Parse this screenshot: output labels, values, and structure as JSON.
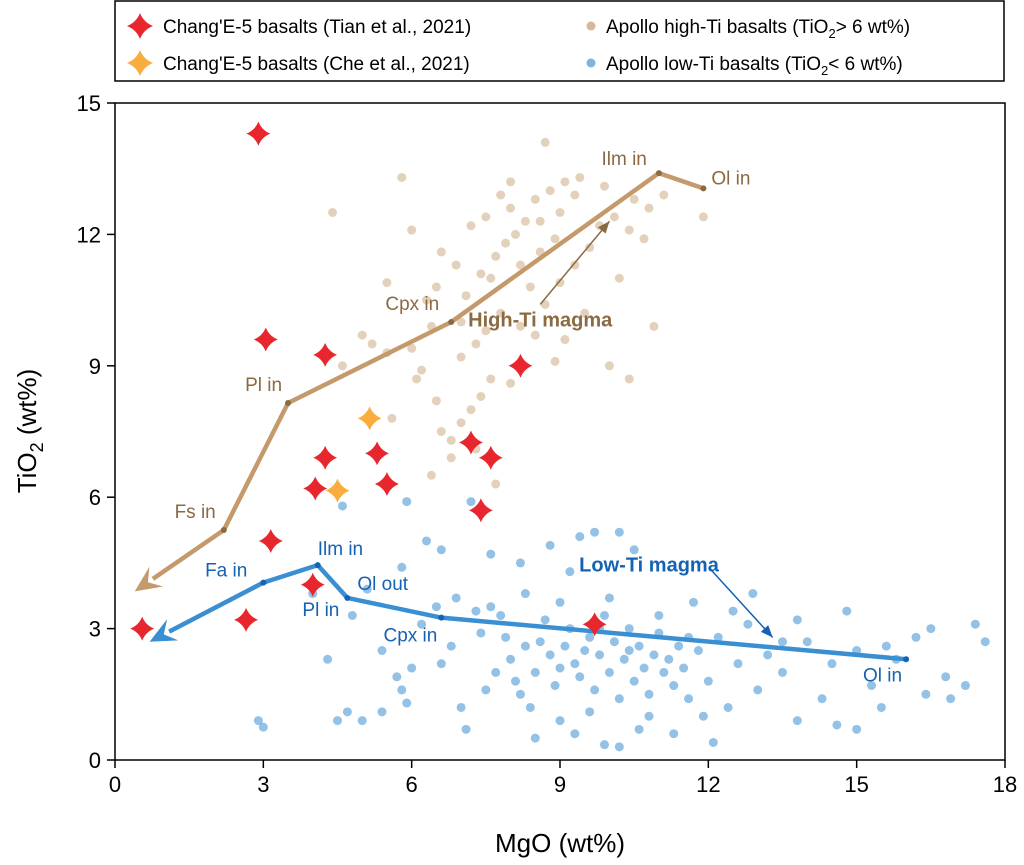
{
  "chart_data": {
    "type": "scatter",
    "xlabel": "MgO (wt%)",
    "ylabel_main": "TiO",
    "ylabel_sub": "2",
    "ylabel_tail": " (wt%)",
    "xlim": [
      0,
      18
    ],
    "ylim": [
      0,
      15
    ],
    "xticks": [
      "0",
      "3",
      "6",
      "9",
      "12",
      "15",
      "18"
    ],
    "yticks": [
      "0",
      "3",
      "6",
      "9",
      "12",
      "15"
    ],
    "grid": false,
    "legend_position": "top",
    "legend": [
      {
        "label": "Chang'E-5 basalts (Tian et al., 2021)",
        "marker": "star",
        "color": "#e8262d"
      },
      {
        "label": "Chang'E-5 basalts (Che et al., 2021)",
        "marker": "star",
        "color": "#f8ad3c"
      },
      {
        "label_pre": "Apollo high-Ti basalts (TiO",
        "label_sub": "2",
        "label_post": "> 6 wt%)",
        "marker": "dot",
        "color": "#d6b896"
      },
      {
        "label_pre": "Apollo low-Ti basalts (TiO",
        "label_sub": "2",
        "label_post": "< 6 wt%)",
        "marker": "dot",
        "color": "#7fb4e0"
      }
    ],
    "series": [
      {
        "name": "Chang'E-5 basalts (Tian et al., 2021)",
        "color": "#e8262d",
        "marker": "star",
        "points": [
          [
            2.9,
            14.3
          ],
          [
            3.05,
            9.6
          ],
          [
            4.25,
            9.25
          ],
          [
            8.2,
            9.0
          ],
          [
            4.25,
            6.9
          ],
          [
            5.3,
            7.0
          ],
          [
            7.2,
            7.25
          ],
          [
            7.6,
            6.9
          ],
          [
            4.05,
            6.2
          ],
          [
            5.5,
            6.3
          ],
          [
            7.4,
            5.7
          ],
          [
            3.15,
            5.0
          ],
          [
            4.0,
            4.0
          ],
          [
            2.65,
            3.2
          ],
          [
            0.55,
            3.0
          ],
          [
            9.7,
            3.1
          ]
        ]
      },
      {
        "name": "Chang'E-5 basalts (Che et al., 2021)",
        "color": "#f8ad3c",
        "marker": "star",
        "points": [
          [
            5.15,
            7.8
          ],
          [
            4.5,
            6.15
          ]
        ]
      },
      {
        "name": "Apollo high-Ti basalts",
        "color": "#d6b896",
        "marker": "dot",
        "points": [
          [
            5.0,
            9.7
          ],
          [
            4.4,
            12.5
          ],
          [
            5.8,
            13.3
          ],
          [
            6.5,
            10.8
          ],
          [
            6.3,
            10.5
          ],
          [
            5.5,
            9.3
          ],
          [
            5.2,
            9.5
          ],
          [
            6.0,
            9.4
          ],
          [
            6.2,
            8.9
          ],
          [
            6.5,
            8.2
          ],
          [
            6.6,
            7.5
          ],
          [
            6.8,
            7.3
          ],
          [
            7.0,
            7.7
          ],
          [
            6.4,
            6.5
          ],
          [
            7.2,
            8.0
          ],
          [
            7.4,
            8.3
          ],
          [
            7.6,
            8.7
          ],
          [
            7.0,
            9.2
          ],
          [
            7.3,
            9.5
          ],
          [
            7.5,
            9.8
          ],
          [
            7.8,
            10.2
          ],
          [
            7.1,
            10.6
          ],
          [
            7.4,
            11.1
          ],
          [
            7.7,
            11.5
          ],
          [
            7.9,
            11.8
          ],
          [
            8.1,
            12.0
          ],
          [
            8.3,
            12.3
          ],
          [
            8.0,
            12.6
          ],
          [
            8.5,
            12.8
          ],
          [
            8.8,
            13.0
          ],
          [
            9.1,
            13.2
          ],
          [
            9.3,
            12.9
          ],
          [
            8.6,
            11.6
          ],
          [
            8.9,
            11.9
          ],
          [
            8.2,
            11.3
          ],
          [
            8.4,
            10.8
          ],
          [
            8.7,
            10.4
          ],
          [
            9.0,
            10.9
          ],
          [
            9.3,
            11.3
          ],
          [
            9.6,
            11.7
          ],
          [
            9.8,
            12.2
          ],
          [
            10.1,
            12.4
          ],
          [
            10.4,
            12.1
          ],
          [
            10.7,
            11.9
          ],
          [
            10.5,
            12.8
          ],
          [
            10.8,
            12.6
          ],
          [
            9.9,
            13.1
          ],
          [
            9.4,
            13.3
          ],
          [
            8.7,
            14.1
          ],
          [
            10.2,
            11.0
          ],
          [
            10.9,
            9.9
          ],
          [
            10.0,
            9.0
          ],
          [
            10.4,
            8.7
          ],
          [
            9.1,
            9.6
          ],
          [
            8.9,
            9.1
          ],
          [
            8.2,
            9.9
          ],
          [
            7.6,
            11.0
          ],
          [
            6.9,
            11.3
          ],
          [
            6.6,
            11.6
          ],
          [
            7.2,
            12.2
          ],
          [
            7.5,
            12.4
          ],
          [
            7.8,
            12.9
          ],
          [
            8.0,
            13.2
          ],
          [
            6.0,
            12.1
          ],
          [
            5.5,
            10.9
          ],
          [
            11.9,
            12.4
          ],
          [
            11.1,
            12.9
          ],
          [
            6.1,
            8.7
          ],
          [
            6.8,
            6.9
          ],
          [
            7.7,
            6.3
          ],
          [
            4.6,
            9.0
          ],
          [
            5.6,
            7.8
          ],
          [
            7.3,
            7.1
          ],
          [
            8.5,
            9.7
          ],
          [
            9.5,
            10.2
          ],
          [
            8.0,
            8.6
          ],
          [
            6.4,
            9.9
          ],
          [
            7.0,
            10.0
          ],
          [
            8.6,
            12.3
          ],
          [
            9.0,
            12.5
          ]
        ]
      },
      {
        "name": "Apollo low-Ti basalts",
        "color": "#5aa0d8",
        "marker": "dot",
        "points": [
          [
            2.9,
            0.9
          ],
          [
            3.0,
            0.75
          ],
          [
            4.0,
            3.8
          ],
          [
            4.3,
            2.3
          ],
          [
            4.5,
            0.9
          ],
          [
            4.7,
            1.1
          ],
          [
            5.0,
            0.9
          ],
          [
            4.6,
            5.8
          ],
          [
            5.4,
            1.1
          ],
          [
            5.7,
            1.9
          ],
          [
            5.8,
            1.6
          ],
          [
            5.9,
            1.3
          ],
          [
            5.4,
            2.5
          ],
          [
            6.0,
            2.1
          ],
          [
            6.2,
            3.1
          ],
          [
            5.8,
            4.4
          ],
          [
            5.9,
            5.9
          ],
          [
            6.3,
            5.0
          ],
          [
            6.6,
            2.2
          ],
          [
            6.8,
            2.6
          ],
          [
            6.6,
            4.8
          ],
          [
            6.9,
            3.7
          ],
          [
            7.1,
            0.7
          ],
          [
            7.2,
            5.9
          ],
          [
            7.3,
            3.4
          ],
          [
            7.4,
            2.9
          ],
          [
            7.6,
            3.5
          ],
          [
            7.8,
            3.3
          ],
          [
            7.9,
            2.8
          ],
          [
            8.0,
            2.3
          ],
          [
            8.1,
            1.8
          ],
          [
            8.2,
            1.5
          ],
          [
            8.4,
            1.2
          ],
          [
            8.5,
            2.0
          ],
          [
            8.6,
            2.7
          ],
          [
            8.7,
            3.2
          ],
          [
            8.8,
            2.4
          ],
          [
            8.9,
            1.7
          ],
          [
            9.0,
            2.1
          ],
          [
            9.1,
            2.6
          ],
          [
            9.2,
            3.0
          ],
          [
            9.3,
            2.2
          ],
          [
            9.4,
            1.9
          ],
          [
            9.5,
            2.5
          ],
          [
            9.6,
            2.8
          ],
          [
            9.7,
            1.6
          ],
          [
            9.8,
            2.4
          ],
          [
            9.9,
            3.3
          ],
          [
            10.0,
            2.0
          ],
          [
            10.1,
            2.7
          ],
          [
            10.2,
            1.4
          ],
          [
            10.3,
            2.3
          ],
          [
            10.4,
            3.0
          ],
          [
            10.5,
            1.8
          ],
          [
            10.6,
            2.6
          ],
          [
            10.7,
            2.1
          ],
          [
            10.8,
            1.5
          ],
          [
            10.9,
            2.4
          ],
          [
            11.0,
            2.9
          ],
          [
            11.1,
            2.0
          ],
          [
            11.2,
            2.3
          ],
          [
            11.3,
            1.7
          ],
          [
            11.4,
            2.6
          ],
          [
            11.5,
            2.1
          ],
          [
            11.6,
            1.4
          ],
          [
            11.8,
            2.5
          ],
          [
            12.0,
            1.8
          ],
          [
            12.2,
            2.8
          ],
          [
            12.4,
            1.2
          ],
          [
            12.6,
            2.2
          ],
          [
            12.8,
            3.1
          ],
          [
            13.0,
            1.6
          ],
          [
            13.2,
            2.4
          ],
          [
            13.5,
            2.0
          ],
          [
            13.8,
            0.9
          ],
          [
            14.0,
            2.7
          ],
          [
            14.3,
            1.4
          ],
          [
            14.6,
            0.8
          ],
          [
            15.0,
            2.5
          ],
          [
            15.0,
            0.7
          ],
          [
            15.3,
            1.7
          ],
          [
            15.6,
            2.6
          ],
          [
            16.2,
            2.8
          ],
          [
            16.4,
            1.5
          ],
          [
            16.8,
            1.9
          ],
          [
            16.9,
            1.4
          ],
          [
            17.2,
            1.7
          ],
          [
            17.4,
            3.1
          ],
          [
            17.6,
            2.7
          ],
          [
            16.5,
            3.0
          ],
          [
            15.8,
            2.3
          ],
          [
            14.8,
            3.4
          ],
          [
            13.8,
            3.2
          ],
          [
            12.9,
            3.8
          ],
          [
            11.7,
            3.6
          ],
          [
            10.5,
            4.8
          ],
          [
            10.2,
            5.2
          ],
          [
            9.7,
            5.2
          ],
          [
            9.2,
            4.3
          ],
          [
            8.2,
            4.5
          ],
          [
            7.6,
            4.7
          ],
          [
            8.8,
            4.9
          ],
          [
            9.4,
            5.1
          ],
          [
            8.5,
            0.5
          ],
          [
            9.3,
            0.6
          ],
          [
            9.9,
            0.35
          ],
          [
            10.2,
            0.3
          ],
          [
            10.6,
            0.7
          ],
          [
            11.3,
            0.6
          ],
          [
            12.1,
            0.4
          ],
          [
            7.0,
            1.2
          ],
          [
            7.5,
            1.6
          ],
          [
            7.7,
            2.0
          ],
          [
            6.5,
            3.5
          ],
          [
            4.8,
            3.3
          ],
          [
            5.1,
            3.9
          ],
          [
            8.3,
            3.8
          ],
          [
            9.0,
            3.6
          ],
          [
            10.0,
            3.7
          ],
          [
            11.0,
            3.3
          ],
          [
            12.5,
            3.4
          ],
          [
            13.5,
            2.7
          ],
          [
            14.5,
            2.2
          ],
          [
            15.5,
            1.2
          ],
          [
            9.6,
            1.1
          ],
          [
            9.0,
            0.9
          ],
          [
            10.8,
            1.0
          ],
          [
            11.9,
            1.0
          ],
          [
            8.3,
            2.6
          ],
          [
            9.8,
            3.0
          ],
          [
            10.4,
            2.5
          ],
          [
            11.6,
            2.8
          ]
        ]
      }
    ],
    "paths": [
      {
        "name": "High-Ti magma",
        "color": "#c49a6c",
        "text_color": "#8b6a42",
        "points": [
          [
            11.9,
            13.05
          ],
          [
            11.0,
            13.4
          ],
          [
            6.8,
            10.0
          ],
          [
            3.5,
            8.15
          ],
          [
            2.2,
            5.25
          ],
          [
            0.4,
            3.85
          ]
        ],
        "labels": [
          {
            "text": "Ol in",
            "at": [
              11.9,
              13.05
            ],
            "dx": 8,
            "dy": -4,
            "anchor": "start"
          },
          {
            "text": "Ilm in",
            "at": [
              11.0,
              13.4
            ],
            "dx": -12,
            "dy": -8,
            "anchor": "end"
          },
          {
            "text": "Cpx in",
            "at": [
              6.8,
              10.0
            ],
            "dx": -12,
            "dy": -12,
            "anchor": "end"
          },
          {
            "text": "Pl in",
            "at": [
              3.5,
              8.15
            ],
            "dx": -6,
            "dy": -12,
            "anchor": "end"
          },
          {
            "text": "Fs in",
            "at": [
              2.2,
              5.25
            ],
            "dx": -8,
            "dy": -12,
            "anchor": "end"
          }
        ],
        "annotation": {
          "text": "High-Ti magma",
          "at": [
            8.6,
            9.9
          ],
          "arrow_to": [
            10.0,
            12.3
          ]
        }
      },
      {
        "name": "Low-Ti magma",
        "color": "#3a8fd3",
        "text_color": "#1462b4",
        "points": [
          [
            16.0,
            2.3
          ],
          [
            6.6,
            3.25
          ],
          [
            4.7,
            3.7
          ],
          [
            4.1,
            4.45
          ],
          [
            3.0,
            4.05
          ],
          [
            0.7,
            2.7
          ]
        ],
        "labels": [
          {
            "text": "Ol in",
            "at": [
              16.0,
              2.3
            ],
            "dx": -4,
            "dy": 22,
            "anchor": "end"
          },
          {
            "text": "Cpx in",
            "at": [
              6.6,
              3.25
            ],
            "dx": -4,
            "dy": 24,
            "anchor": "end"
          },
          {
            "text": "Ol out",
            "at": [
              4.7,
              3.7
            ],
            "dx": 10,
            "dy": -8,
            "anchor": "start"
          },
          {
            "text": "Pl in",
            "at": [
              4.7,
              3.7
            ],
            "dx": -8,
            "dy": 18,
            "anchor": "end"
          },
          {
            "text": "Ilm in",
            "at": [
              4.1,
              4.45
            ],
            "dx": 0,
            "dy": -10,
            "anchor": "start"
          },
          {
            "text": "Fa in",
            "at": [
              3.0,
              4.05
            ],
            "dx": -16,
            "dy": -6,
            "anchor": "end"
          }
        ],
        "annotation": {
          "text": "Low-Ti magma",
          "at": [
            10.8,
            4.3
          ],
          "arrow_to": [
            13.3,
            2.8
          ]
        }
      }
    ]
  }
}
